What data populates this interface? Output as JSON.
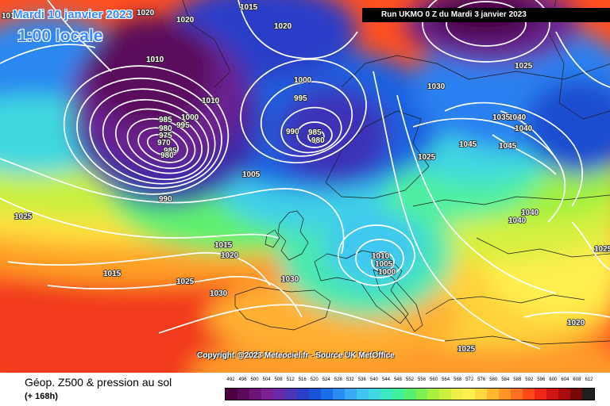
{
  "header": {
    "valid_date": "Mardi 10 janvier 2023",
    "valid_time": "1:00 locale",
    "run_info": "Run UKMO 0 Z du Mardi 3 janvier 2023"
  },
  "copyright": "Copyright @2023 Meteociel.fr - Source UK MetOffice",
  "footer": {
    "title": "Géop. Z500 & pression au sol",
    "subtitle": "(+ 168h)"
  },
  "legend": {
    "labels": [
      "492",
      "496",
      "500",
      "504",
      "508",
      "512",
      "516",
      "520",
      "524",
      "528",
      "532",
      "536",
      "540",
      "544",
      "548",
      "552",
      "556",
      "560",
      "564",
      "568",
      "572",
      "576",
      "580",
      "584",
      "588",
      "592",
      "596",
      "600",
      "604",
      "608",
      "612"
    ],
    "colors": [
      "#4a0040",
      "#5c0a5c",
      "#6e1478",
      "#7a2090",
      "#6a2aa8",
      "#4c36b8",
      "#2a3ec8",
      "#1a52d8",
      "#1a6ee8",
      "#2a8cf0",
      "#3aa8f4",
      "#40c4f0",
      "#40d8e0",
      "#3ce8c0",
      "#40f098",
      "#58f070",
      "#80f050",
      "#a8f040",
      "#ccf040",
      "#eef048",
      "#fff050",
      "#ffd840",
      "#ffb830",
      "#ff9428",
      "#ff7020",
      "#ff4a18",
      "#f02818",
      "#d01414",
      "#a80c0c",
      "#780808",
      "#202020"
    ]
  },
  "isobar_labels": [
    {
      "text": "1015"
    },
    {
      "text": "1020"
    },
    {
      "text": "1020"
    },
    {
      "text": "1015"
    },
    {
      "text": "1020"
    },
    {
      "text": "1025"
    },
    {
      "text": "1010"
    },
    {
      "text": "1010"
    },
    {
      "text": "1000"
    },
    {
      "text": "995"
    },
    {
      "text": "985"
    },
    {
      "text": "980"
    },
    {
      "text": "975"
    },
    {
      "text": "970"
    },
    {
      "text": "985"
    },
    {
      "text": "980"
    },
    {
      "text": "995"
    },
    {
      "text": "1000"
    },
    {
      "text": "990"
    },
    {
      "text": "985"
    },
    {
      "text": "980"
    },
    {
      "text": "1005"
    },
    {
      "text": "990"
    },
    {
      "text": "1025"
    },
    {
      "text": "1015"
    },
    {
      "text": "1020"
    },
    {
      "text": "1015"
    },
    {
      "text": "1025"
    },
    {
      "text": "1030"
    },
    {
      "text": "1030"
    },
    {
      "text": "1030"
    },
    {
      "text": "1025"
    },
    {
      "text": "1045"
    },
    {
      "text": "1045"
    },
    {
      "text": "1040"
    },
    {
      "text": "1040"
    },
    {
      "text": "1035"
    },
    {
      "text": "1040"
    },
    {
      "text": "1040"
    },
    {
      "text": "1010"
    },
    {
      "text": "1005"
    },
    {
      "text": "1000"
    },
    {
      "text": "1025"
    },
    {
      "text": "1020"
    },
    {
      "text": "1025"
    }
  ]
}
